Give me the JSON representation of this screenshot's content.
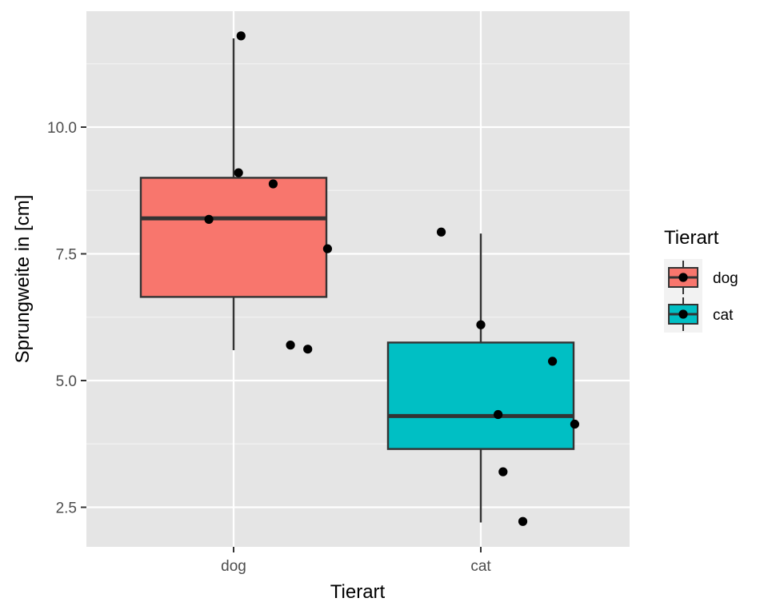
{
  "chart_data": {
    "type": "box",
    "title": "",
    "xlabel": "Tierart",
    "ylabel": "Sprungweite in [cm]",
    "ylim": [
      1.7,
      12.3
    ],
    "yticks": [
      2.5,
      5.0,
      7.5,
      10.0
    ],
    "ytick_labels": [
      "2.5",
      "5.0",
      "7.5",
      "10.0"
    ],
    "categories": [
      "dog",
      "cat"
    ],
    "grid": true,
    "legend": {
      "title": "Tierart",
      "position": "right",
      "entries": [
        {
          "label": "dog",
          "color": "#F8766D"
        },
        {
          "label": "cat",
          "color": "#00BFC4"
        }
      ]
    },
    "boxes": [
      {
        "category": "dog",
        "color": "#F8766D",
        "q1": 6.65,
        "median": 8.2,
        "q3": 9.0,
        "whisker_low": 5.6,
        "whisker_high": 11.75
      },
      {
        "category": "cat",
        "color": "#00BFC4",
        "q1": 3.65,
        "median": 4.3,
        "q3": 5.75,
        "whisker_low": 2.2,
        "whisker_high": 7.9
      }
    ],
    "points": [
      {
        "category": "dog",
        "jitter": 0.03,
        "y": 11.8
      },
      {
        "category": "dog",
        "jitter": 0.02,
        "y": 9.1
      },
      {
        "category": "dog",
        "jitter": 0.16,
        "y": 8.88
      },
      {
        "category": "dog",
        "jitter": -0.1,
        "y": 8.18
      },
      {
        "category": "dog",
        "jitter": 0.38,
        "y": 7.6
      },
      {
        "category": "dog",
        "jitter": 0.23,
        "y": 5.7
      },
      {
        "category": "dog",
        "jitter": 0.3,
        "y": 5.62
      },
      {
        "category": "cat",
        "jitter": -0.16,
        "y": 7.93
      },
      {
        "category": "cat",
        "jitter": 0.0,
        "y": 6.1
      },
      {
        "category": "cat",
        "jitter": 0.29,
        "y": 5.38
      },
      {
        "category": "cat",
        "jitter": 0.07,
        "y": 4.33
      },
      {
        "category": "cat",
        "jitter": 0.38,
        "y": 4.14
      },
      {
        "category": "cat",
        "jitter": 0.09,
        "y": 3.2
      },
      {
        "category": "cat",
        "jitter": 0.17,
        "y": 2.22
      }
    ]
  }
}
